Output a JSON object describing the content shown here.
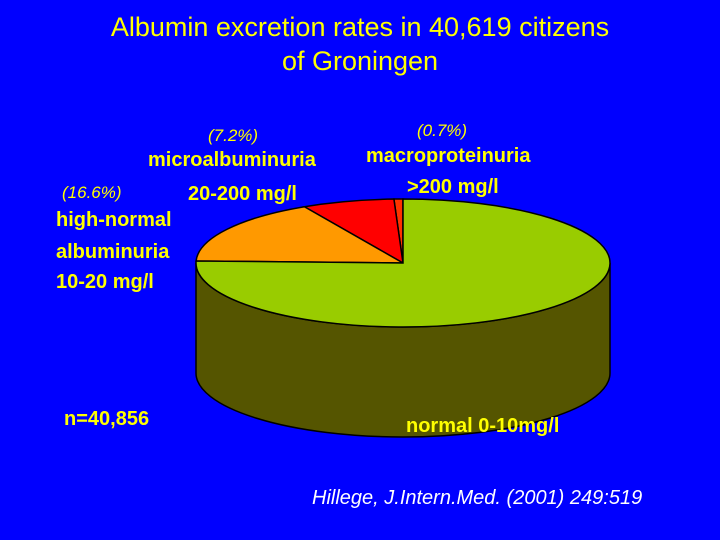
{
  "title_line1": "Albumin excretion rates in 40,619 citizens",
  "title_line2": "of Groningen",
  "n_label": "n=40,856",
  "citation": "Hillege, J.Intern.Med. (2001) 249:519",
  "colors": {
    "background": "#0000ff",
    "text": "#ffff00",
    "citation": "#ffffff",
    "normal": "#99cc00",
    "normal_side": "#555500",
    "high_normal": "#ff9900",
    "micro": "#ff0000",
    "macro": "#ff3300"
  },
  "chart_data": {
    "type": "pie",
    "title": "Albumin excretion rates in 40,619 citizens of Groningen",
    "slices": [
      {
        "name": "normal 0-10mg/l",
        "value": 75.5,
        "pct_label": ""
      },
      {
        "name": "high-normal albuminuria 10-20 mg/l",
        "value": 16.6,
        "pct_label": "(16.6%)"
      },
      {
        "name": "microalbuminuria 20-200 mg/l",
        "value": 7.2,
        "pct_label": "(7.2%)"
      },
      {
        "name": "macroproteinuria >200 mg/l",
        "value": 0.7,
        "pct_label": "(0.7%)"
      }
    ]
  },
  "labels": {
    "micro_line1": "microalbuminuria",
    "micro_line2": "20-200 mg/l",
    "micro_pct": "(7.2%)",
    "macro_line1": "macroproteinuria",
    "macro_line2": ">200 mg/l",
    "macro_pct": "(0.7%)",
    "high_pct": "(16.6%)",
    "high_line1": "high-normal",
    "high_line2": "albuminuria",
    "high_line3": "10-20 mg/l",
    "normal": "normal 0-10mg/l"
  }
}
